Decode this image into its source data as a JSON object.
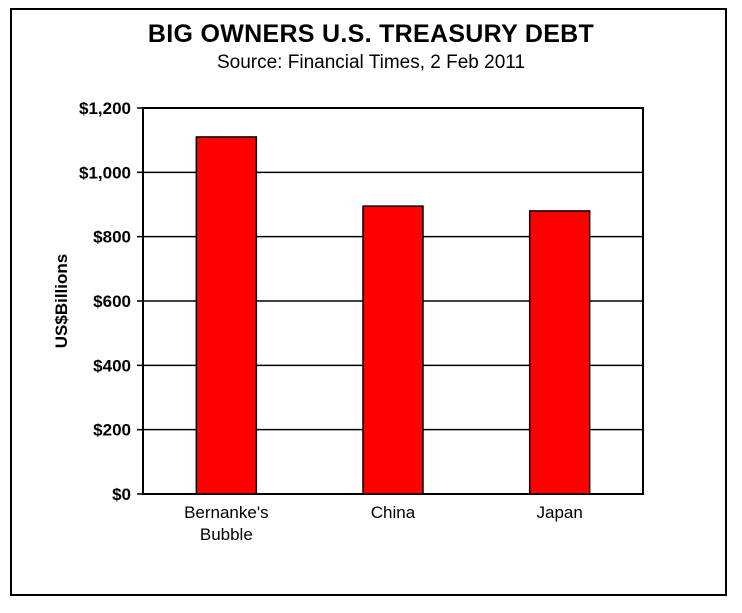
{
  "chart_data": {
    "type": "bar",
    "title": "BIG OWNERS U.S. TREASURY DEBT",
    "subtitle": "Source: Financial Times, 2 Feb 2011",
    "ylabel": "US$Billions",
    "xlabel": "",
    "categories": [
      [
        "Bernanke's",
        "Bubble"
      ],
      [
        "China"
      ],
      [
        "Japan"
      ]
    ],
    "values": [
      1110,
      895,
      880
    ],
    "ylim": [
      0,
      1200
    ],
    "yticks": [
      0,
      200,
      400,
      600,
      800,
      1000,
      1200
    ],
    "ytick_labels": [
      "$0",
      "$200",
      "$400",
      "$600",
      "$800",
      "$1,000",
      "$1,200"
    ],
    "grid": true,
    "legend": "none",
    "bar_color": "#ff0000",
    "bar_outline_color": "#000000"
  }
}
